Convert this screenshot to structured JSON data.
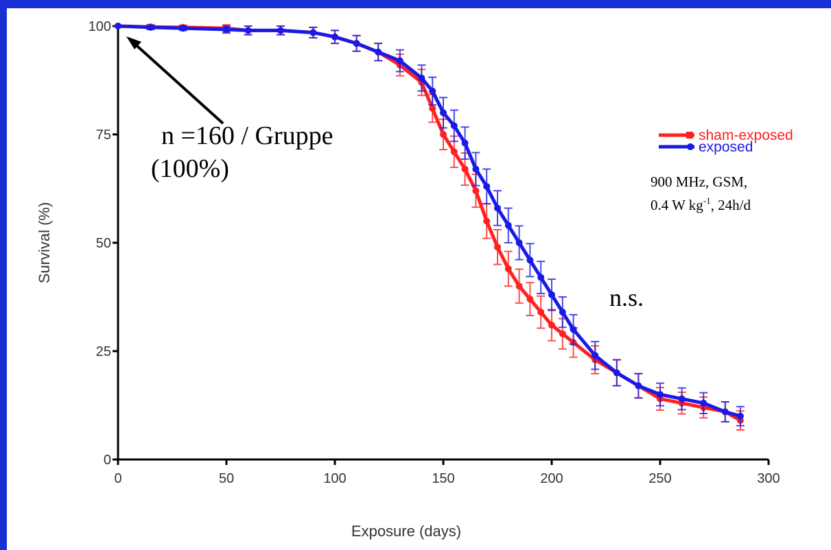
{
  "chart_data": {
    "type": "line",
    "x_label": "Exposure (days)",
    "y_label": "Survival (%)",
    "x": [
      0,
      15,
      30,
      50,
      60,
      75,
      90,
      100,
      110,
      120,
      130,
      140,
      145,
      150,
      155,
      160,
      165,
      170,
      175,
      180,
      185,
      190,
      195,
      200,
      205,
      210,
      220,
      230,
      240,
      250,
      260,
      270,
      280,
      287
    ],
    "series": [
      {
        "name": "sham-exposed",
        "color": "#ff2020",
        "values": [
          100,
          99.8,
          99.7,
          99.5,
          99,
          99,
          98.5,
          97.5,
          96,
          94,
          91,
          87,
          81,
          75,
          71,
          67,
          62,
          55,
          49,
          44,
          40,
          37,
          34,
          31,
          29,
          27,
          23,
          20,
          17,
          14,
          13,
          12,
          11,
          9
        ],
        "errors": [
          0,
          0.5,
          0.5,
          0.8,
          1,
          1,
          1.2,
          1.5,
          1.8,
          2,
          2.5,
          3,
          3.2,
          3.5,
          3.6,
          3.7,
          3.8,
          4,
          4,
          4,
          3.9,
          3.8,
          3.7,
          3.6,
          3.5,
          3.4,
          3.2,
          3,
          2.8,
          2.6,
          2.5,
          2.4,
          2.3,
          2.2
        ]
      },
      {
        "name": "exposed",
        "color": "#1a1ae6",
        "values": [
          100,
          99.7,
          99.5,
          99.2,
          99,
          99,
          98.5,
          97.5,
          96,
          94,
          92,
          88,
          85,
          80,
          77,
          73,
          67,
          63,
          58,
          54,
          50,
          46,
          42,
          38,
          34,
          30,
          24,
          20,
          17,
          15,
          14,
          13,
          11,
          10
        ],
        "errors": [
          0,
          0.5,
          0.5,
          0.8,
          1,
          1,
          1.2,
          1.5,
          1.8,
          2,
          2.5,
          3,
          3.2,
          3.5,
          3.6,
          3.7,
          3.8,
          4,
          4,
          4,
          3.9,
          3.8,
          3.7,
          3.6,
          3.5,
          3.4,
          3.2,
          3,
          2.8,
          2.6,
          2.5,
          2.4,
          2.3,
          2.2
        ]
      }
    ],
    "xlim": [
      0,
      300
    ],
    "xticks": [
      0,
      50,
      100,
      150,
      200,
      250,
      300
    ],
    "ylim": [
      0,
      100
    ],
    "yticks": [
      0,
      25,
      50,
      75,
      100
    ],
    "legend": "right",
    "annotations": {
      "sample": "n =160 / Gruppe",
      "sample_pct": "(100%)",
      "exposure_line1": "900 MHz, GSM,",
      "exposure_line2": [
        "0.4 W kg",
        "-1",
        ", 24h/d"
      ],
      "significance": "n.s."
    }
  }
}
